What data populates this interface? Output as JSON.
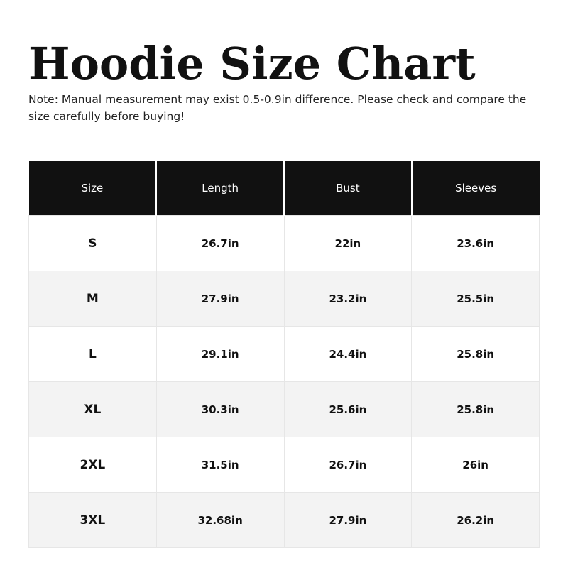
{
  "title": "Hoodie Size Chart",
  "note": "Note: Manual measurement may exist 0.5-0.9in difference. Please check and compare the size carefully before buying!",
  "table": {
    "headers": [
      "Size",
      "Length",
      "Bust",
      "Sleeves"
    ],
    "rows": [
      [
        "S",
        "26.7in",
        "22in",
        "23.6in"
      ],
      [
        "M",
        "27.9in",
        "23.2in",
        "25.5in"
      ],
      [
        "L",
        "29.1in",
        "24.4in",
        "25.8in"
      ],
      [
        "XL",
        "30.3in",
        "25.6in",
        "25.8in"
      ],
      [
        "2XL",
        "31.5in",
        "26.7in",
        "26in"
      ],
      [
        "3XL",
        "32.68in",
        "27.9in",
        "26.2in"
      ]
    ]
  },
  "colors": {
    "header_bg": "#111111",
    "alt_row_bg": "#f3f3f3"
  }
}
